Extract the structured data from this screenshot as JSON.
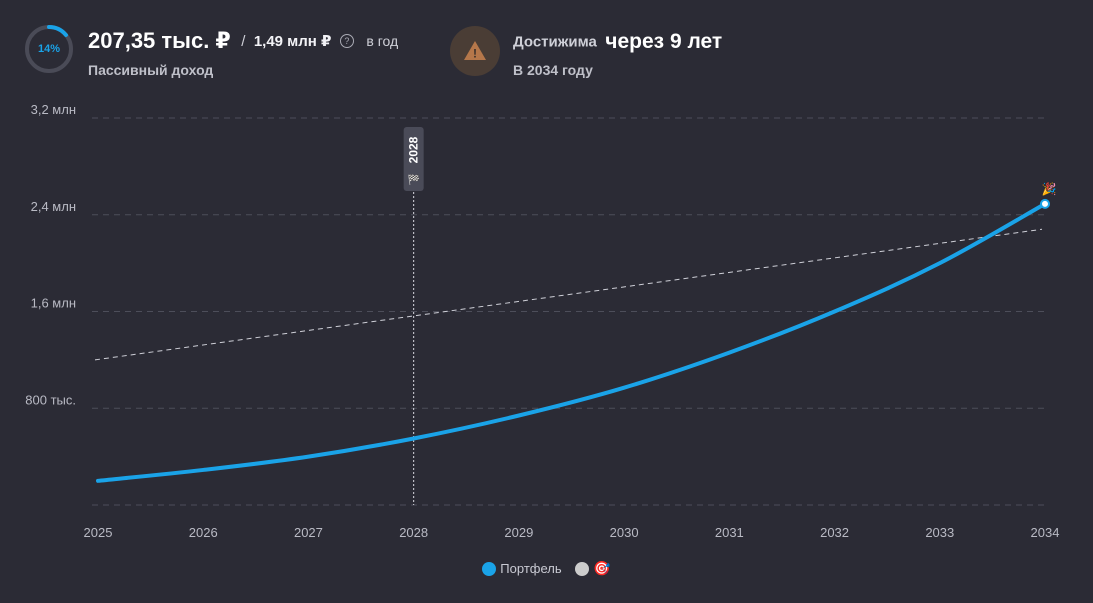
{
  "summary": {
    "progress_label": "14%",
    "progress_percent": 14,
    "income_current": "207,35 тыс. ₽",
    "income_separator": "/",
    "income_target": "1,49 млн ₽",
    "help_symbol": "?",
    "income_period": "в год",
    "income_caption": "Пассивный доход",
    "reach_label": "Достижима",
    "reach_value": "через 9 лет",
    "reach_caption": "В 2034 году",
    "warning_symbol": "!"
  },
  "colors": {
    "background": "#2b2b35",
    "accent": "#1aa3e8",
    "target": "#cccccc",
    "warning": "#b5774a"
  },
  "legend": {
    "portfolio_label": "Портфель",
    "target_icon": "🎯",
    "goal_icon": "🎉"
  },
  "chart_data": {
    "type": "line",
    "x": [
      2025,
      2026,
      2027,
      2028,
      2029,
      2030,
      2031,
      2032,
      2033,
      2034
    ],
    "x_tick_labels": [
      "2025",
      "2026",
      "2027",
      "2028",
      "2029",
      "2030",
      "2031",
      "2032",
      "2033",
      "2034"
    ],
    "y_ticks": [
      800000,
      1600000,
      2400000,
      3200000
    ],
    "y_tick_labels": [
      "800 тыс.",
      "1,6 млн",
      "2,4 млн",
      "3,2 млн"
    ],
    "ylim": [
      0,
      3200000
    ],
    "grid": true,
    "marker": {
      "x": 2028,
      "label": "2028",
      "icon": "🏁"
    },
    "series": [
      {
        "name": "Портфель",
        "style": "solid",
        "values": [
          200000,
          290000,
          400000,
          550000,
          740000,
          970000,
          1260000,
          1600000,
          2000000,
          2490000
        ]
      },
      {
        "name": "Цель",
        "style": "dashed",
        "values": [
          1200000,
          1320000,
          1440000,
          1560000,
          1670000,
          1790000,
          1900000,
          2020000,
          2140000,
          2280000
        ]
      }
    ]
  }
}
